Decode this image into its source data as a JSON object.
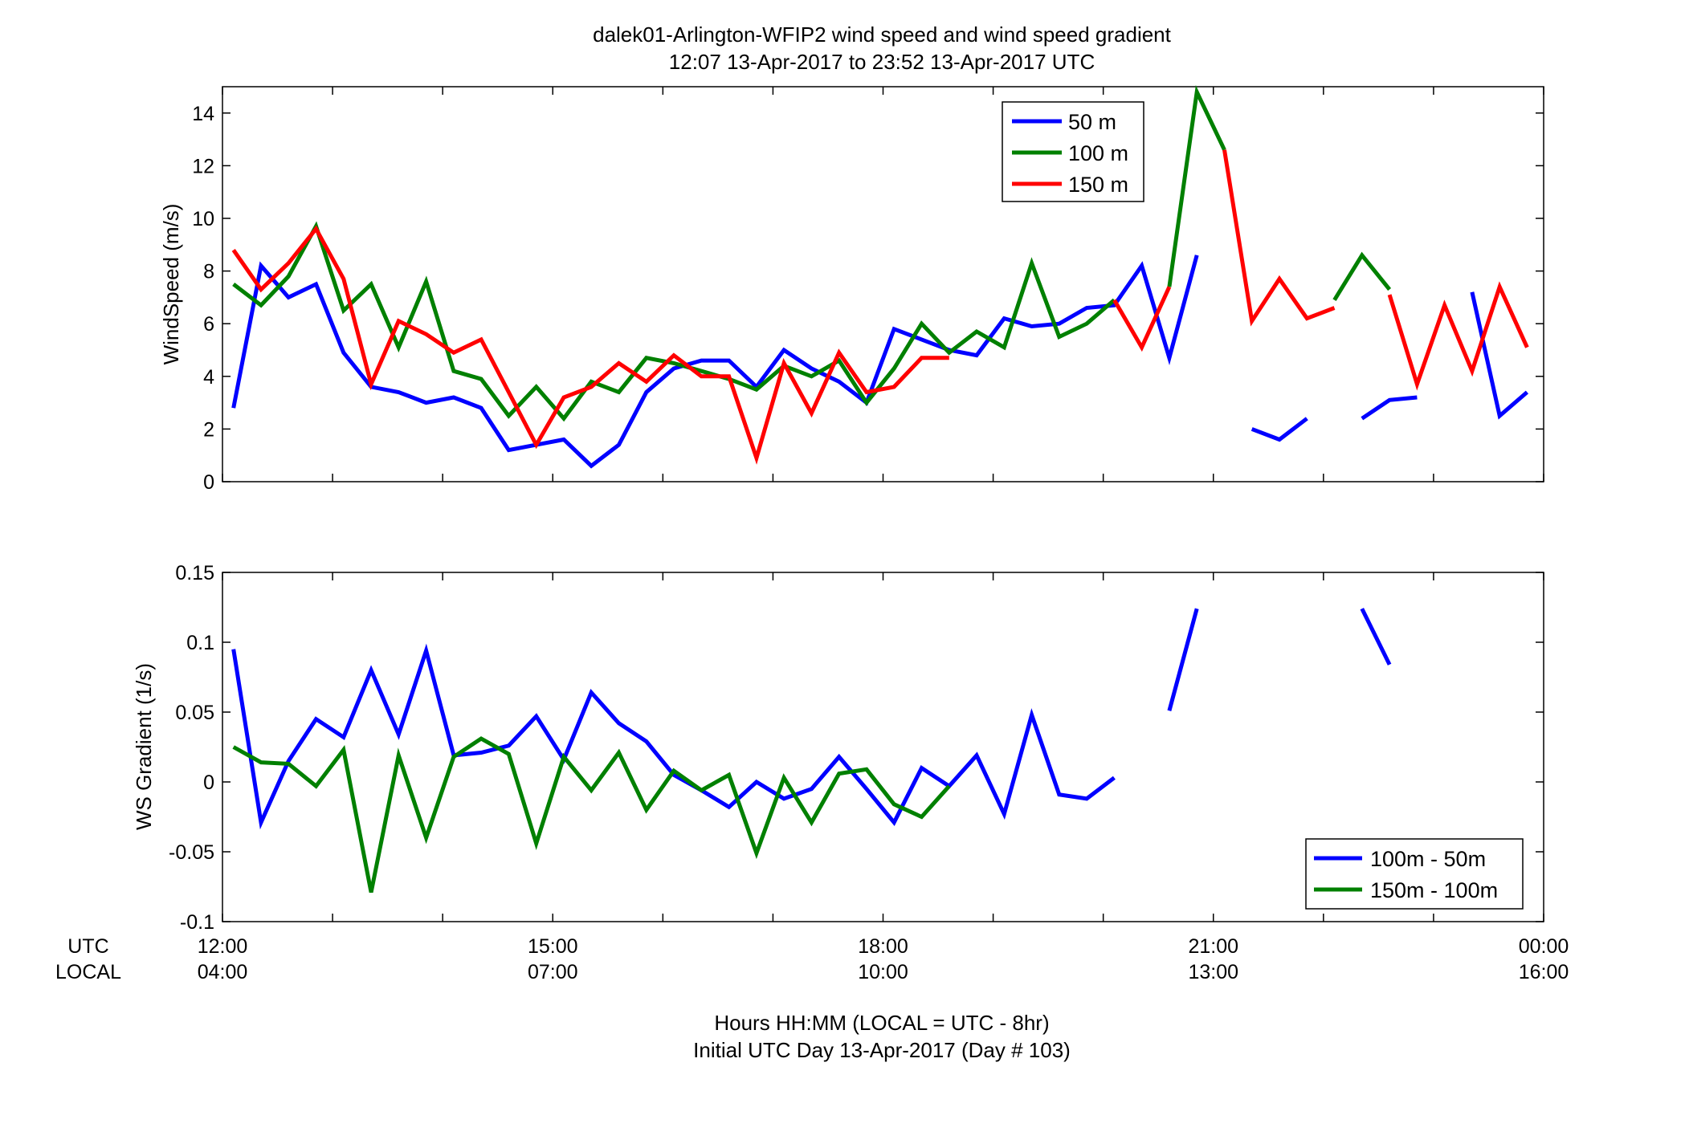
{
  "title": {
    "line1": "dalek01-Arlington-WFIP2  wind speed and wind speed gradient",
    "line2": "12:07 13-Apr-2017 to 23:52 13-Apr-2017  UTC"
  },
  "xaxis": {
    "row_labels": [
      "UTC",
      "LOCAL"
    ],
    "range_hours_utc": [
      12,
      24
    ],
    "ticks": [
      {
        "hour": 12,
        "utc": "12:00",
        "local": "04:00"
      },
      {
        "hour": 15,
        "utc": "15:00",
        "local": "07:00"
      },
      {
        "hour": 18,
        "utc": "18:00",
        "local": "10:00"
      },
      {
        "hour": 21,
        "utc": "21:00",
        "local": "13:00"
      },
      {
        "hour": 24,
        "utc": "00:00",
        "local": "16:00"
      }
    ],
    "label_line1": "Hours HH:MM  (LOCAL = UTC - 8hr)",
    "label_line2": "Initial UTC Day 13-Apr-2017 (Day # 103)"
  },
  "chart_data": [
    {
      "type": "line",
      "ylabel": "WindSpeed (m/s)",
      "ylim": [
        0,
        15
      ],
      "yticks": [
        0,
        2,
        4,
        6,
        8,
        10,
        12,
        14
      ],
      "ytick_labels": [
        "0",
        "2",
        "4",
        "6",
        "8",
        "10",
        "12",
        "14"
      ],
      "legend_position": "top-right",
      "x_unit": "hour UTC",
      "x": [
        12.1,
        12.35,
        12.6,
        12.85,
        13.1,
        13.35,
        13.6,
        13.85,
        14.1,
        14.35,
        14.6,
        14.85,
        15.1,
        15.35,
        15.6,
        15.85,
        16.1,
        16.35,
        16.6,
        16.85,
        17.1,
        17.35,
        17.6,
        17.85,
        18.1,
        18.35,
        18.6,
        18.85,
        19.1,
        19.35,
        19.6,
        19.85,
        20.1,
        20.35,
        20.6,
        20.85,
        21.1,
        21.35,
        21.6,
        21.85,
        22.1,
        22.35,
        22.6,
        22.85,
        23.1,
        23.35,
        23.6,
        23.85
      ],
      "series": [
        {
          "name": "50 m",
          "color": "#0000ff",
          "values": [
            2.8,
            8.2,
            7.0,
            7.5,
            4.9,
            3.6,
            3.4,
            3.0,
            3.2,
            2.8,
            1.2,
            1.4,
            1.6,
            0.6,
            1.4,
            3.4,
            4.3,
            4.6,
            4.6,
            3.6,
            5.0,
            4.3,
            3.8,
            3.0,
            5.8,
            5.4,
            5.0,
            4.8,
            6.2,
            5.9,
            6.0,
            6.6,
            6.7,
            8.2,
            4.7,
            8.6,
            null,
            2.0,
            1.6,
            2.4,
            null,
            2.4,
            3.1,
            3.2,
            null,
            7.2,
            2.5,
            3.4
          ]
        },
        {
          "name": "100 m",
          "color": "#008000",
          "values": [
            7.5,
            6.7,
            7.8,
            9.7,
            6.5,
            7.5,
            5.1,
            7.6,
            4.2,
            3.9,
            2.5,
            3.6,
            2.4,
            3.8,
            3.4,
            4.7,
            4.5,
            4.2,
            3.9,
            3.5,
            4.4,
            4.0,
            4.6,
            3.0,
            4.3,
            6.0,
            4.9,
            5.7,
            5.1,
            8.3,
            5.5,
            6.0,
            6.9,
            null,
            7.4,
            14.8,
            12.6,
            null,
            null,
            null,
            6.9,
            8.6,
            7.3,
            null,
            null,
            null,
            null,
            null
          ]
        },
        {
          "name": "150 m",
          "color": "#ff0000",
          "values": [
            8.8,
            7.3,
            8.3,
            9.6,
            7.7,
            3.7,
            6.1,
            5.6,
            4.9,
            5.4,
            3.4,
            1.4,
            3.2,
            3.6,
            4.5,
            3.8,
            4.8,
            4.0,
            4.0,
            0.9,
            4.5,
            2.6,
            4.9,
            3.4,
            3.6,
            4.7,
            4.7,
            null,
            null,
            null,
            null,
            null,
            6.9,
            5.1,
            7.4,
            null,
            12.6,
            6.1,
            7.7,
            6.2,
            6.6,
            null,
            7.1,
            3.7,
            6.7,
            4.2,
            7.4,
            5.1
          ]
        }
      ]
    },
    {
      "type": "line",
      "ylabel": "WS Gradient (1/s)",
      "ylim": [
        -0.1,
        0.15
      ],
      "yticks": [
        -0.1,
        -0.05,
        0,
        0.05,
        0.1,
        0.15
      ],
      "ytick_labels": [
        "-0.1",
        "-0.05",
        "0",
        "0.05",
        "0.1",
        "0.15"
      ],
      "legend_position": "bottom-right",
      "x_unit": "hour UTC",
      "x": [
        12.1,
        12.35,
        12.6,
        12.85,
        13.1,
        13.35,
        13.6,
        13.85,
        14.1,
        14.35,
        14.6,
        14.85,
        15.1,
        15.35,
        15.6,
        15.85,
        16.1,
        16.35,
        16.6,
        16.85,
        17.1,
        17.35,
        17.6,
        17.85,
        18.1,
        18.35,
        18.6,
        18.85,
        19.1,
        19.35,
        19.6,
        19.85,
        20.1,
        20.35,
        20.6,
        20.85,
        21.1,
        21.35,
        21.6,
        21.85,
        22.1,
        22.35,
        22.6,
        22.85
      ],
      "series": [
        {
          "name": "100m - 50m",
          "color": "#0000ff",
          "values": [
            0.095,
            -0.029,
            0.015,
            0.045,
            0.032,
            0.08,
            0.034,
            0.094,
            0.019,
            0.021,
            0.026,
            0.047,
            0.016,
            0.064,
            0.042,
            0.029,
            0.005,
            -0.006,
            -0.018,
            0.0,
            -0.012,
            -0.005,
            0.018,
            -0.005,
            -0.029,
            0.01,
            -0.003,
            0.019,
            -0.023,
            0.048,
            -0.009,
            -0.012,
            0.003,
            null,
            0.051,
            0.124,
            null,
            null,
            null,
            null,
            null,
            0.124,
            0.084,
            null
          ]
        },
        {
          "name": "150m - 100m",
          "color": "#008000",
          "values": [
            0.025,
            0.014,
            0.013,
            -0.003,
            0.023,
            -0.079,
            0.019,
            -0.04,
            0.018,
            0.031,
            0.02,
            -0.044,
            0.018,
            -0.006,
            0.021,
            -0.02,
            0.008,
            -0.006,
            0.005,
            -0.051,
            0.003,
            -0.029,
            0.006,
            0.009,
            -0.016,
            -0.025,
            -0.003,
            null,
            null,
            null,
            null,
            null,
            null,
            null,
            null,
            null,
            null,
            null,
            null,
            null,
            null,
            null,
            null,
            null
          ]
        }
      ]
    }
  ]
}
